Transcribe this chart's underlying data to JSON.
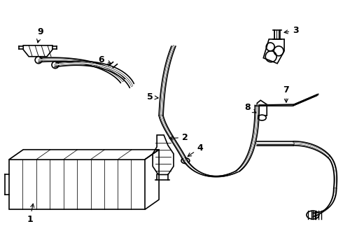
{
  "bg_color": "#ffffff",
  "line_color": "#000000",
  "lw": 1.2,
  "lw2": 2.0,
  "parts": {
    "1_label": "1",
    "2_label": "2",
    "3_label": "3",
    "4_label": "4",
    "5_label": "5",
    "6_label": "6",
    "7_label": "7",
    "8_label": "8",
    "9_label": "9"
  }
}
